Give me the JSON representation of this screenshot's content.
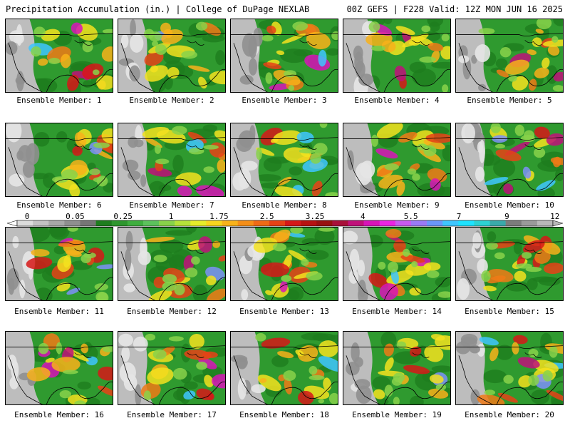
{
  "header": {
    "left": "Precipitation Accumulation (in.) | College of DuPage NEXLAB",
    "right": "00Z GEFS | F228 Valid: 12Z MON JUN 16 2025"
  },
  "panels": [
    {
      "caption": "Ensemble Member: 1"
    },
    {
      "caption": "Ensemble Member: 2"
    },
    {
      "caption": "Ensemble Member: 3"
    },
    {
      "caption": "Ensemble Member: 4"
    },
    {
      "caption": "Ensemble Member: 5"
    },
    {
      "caption": "Ensemble Member: 6"
    },
    {
      "caption": "Ensemble Member: 7"
    },
    {
      "caption": "Ensemble Member: 8"
    },
    {
      "caption": "Ensemble Member: 9"
    },
    {
      "caption": "Ensemble Member: 10"
    },
    {
      "caption": "Ensemble Member: 11"
    },
    {
      "caption": "Ensemble Member: 12"
    },
    {
      "caption": "Ensemble Member: 13"
    },
    {
      "caption": "Ensemble Member: 14"
    },
    {
      "caption": "Ensemble Member: 15"
    },
    {
      "caption": "Ensemble Member: 16"
    },
    {
      "caption": "Ensemble Member: 17"
    },
    {
      "caption": "Ensemble Member: 18"
    },
    {
      "caption": "Ensemble Member: 19"
    },
    {
      "caption": "Ensemble Member: 20"
    }
  ],
  "legend": {
    "labels": [
      "0",
      "0.05",
      "0.25",
      "1",
      "1.75",
      "2.5",
      "3.25",
      "4",
      "5.5",
      "7",
      "9",
      "12"
    ],
    "colors": [
      "#dcdcdc",
      "#c2c2c2",
      "#a8a8a8",
      "#8f8f8f",
      "#767676",
      "#1e7d1e",
      "#2e962e",
      "#3fae3f",
      "#5cc25c",
      "#88d24a",
      "#b6e23a",
      "#e6ec2a",
      "#f7d51e",
      "#f8b21a",
      "#f48e18",
      "#ee6a16",
      "#e64216",
      "#d61818",
      "#b61212",
      "#981010",
      "#a8103a",
      "#c0107a",
      "#d814b8",
      "#ea24e2",
      "#c85af0",
      "#9a7af6",
      "#6a96fa",
      "#3ec6ff",
      "#1ee2ff",
      "#2cd2d2",
      "#3aaaaa",
      "#7c7c7c",
      "#9a9a9a",
      "#b8b8b8"
    ]
  }
}
